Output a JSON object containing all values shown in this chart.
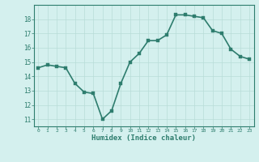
{
  "x": [
    0,
    1,
    2,
    3,
    4,
    5,
    6,
    7,
    8,
    9,
    10,
    11,
    12,
    13,
    14,
    15,
    16,
    17,
    18,
    19,
    20,
    21,
    22,
    23
  ],
  "y": [
    14.6,
    14.8,
    14.7,
    14.6,
    13.5,
    12.9,
    12.8,
    11.0,
    11.6,
    13.5,
    15.0,
    15.6,
    16.5,
    16.5,
    16.9,
    18.3,
    18.3,
    18.2,
    18.1,
    17.2,
    17.0,
    15.9,
    15.4,
    15.2
  ],
  "xlabel": "Humidex (Indice chaleur)",
  "xlim": [
    -0.5,
    23.5
  ],
  "ylim": [
    10.5,
    19.0
  ],
  "yticks": [
    11,
    12,
    13,
    14,
    15,
    16,
    17,
    18
  ],
  "xticks": [
    0,
    1,
    2,
    3,
    4,
    5,
    6,
    7,
    8,
    9,
    10,
    11,
    12,
    13,
    14,
    15,
    16,
    17,
    18,
    19,
    20,
    21,
    22,
    23
  ],
  "line_color": "#2e7d6e",
  "marker_color": "#2e7d6e",
  "bg_color": "#d4f0ee",
  "grid_color": "#b8dcd8",
  "xlabel_color": "#2e7d6e",
  "tick_color": "#2e7d6e",
  "spine_color": "#2e7d6e",
  "line_width": 1.2,
  "marker_size": 2.5
}
